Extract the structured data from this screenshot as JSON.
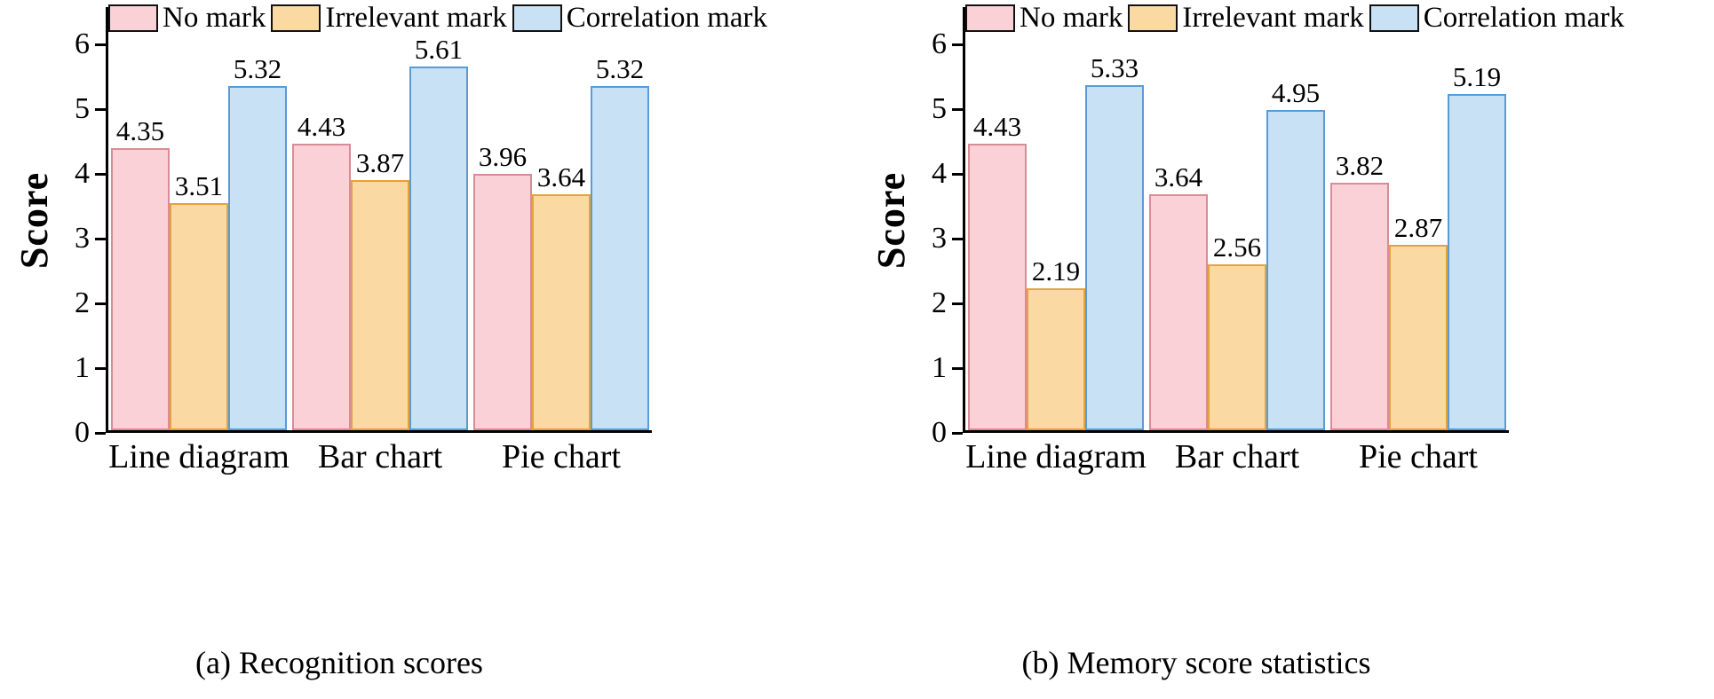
{
  "style": {
    "background": "#ffffff",
    "axis_color": "#000000",
    "text_color": "#000000"
  },
  "chart_data": [
    {
      "type": "bar",
      "caption": "(a) Recognition scores",
      "ylabel": "Score",
      "xlabel": "",
      "ylim": [
        0,
        6
      ],
      "yticks": [
        0,
        1,
        2,
        3,
        4,
        5,
        6
      ],
      "grid": false,
      "legend_position": "top",
      "categories": [
        "Line diagram",
        "Bar chart",
        "Pie chart"
      ],
      "series": [
        {
          "name": "No mark",
          "values": [
            4.35,
            4.43,
            3.96
          ],
          "fill": "#f9d1d7",
          "stroke": "#d98b96"
        },
        {
          "name": "Irrelevant mark",
          "values": [
            3.51,
            3.87,
            3.64
          ],
          "fill": "#fbd9a3",
          "stroke": "#e5a33d"
        },
        {
          "name": "Correlation mark",
          "values": [
            5.32,
            5.61,
            5.32
          ],
          "fill": "#c8e1f5",
          "stroke": "#5b9bd5"
        }
      ]
    },
    {
      "type": "bar",
      "caption": "(b) Memory score statistics",
      "ylabel": "Score",
      "xlabel": "",
      "ylim": [
        0,
        6
      ],
      "yticks": [
        0,
        1,
        2,
        3,
        4,
        5,
        6
      ],
      "grid": false,
      "legend_position": "top",
      "categories": [
        "Line diagram",
        "Bar chart",
        "Pie chart"
      ],
      "series": [
        {
          "name": "No mark",
          "values": [
            4.43,
            3.64,
            3.82
          ],
          "fill": "#f9d1d7",
          "stroke": "#d98b96"
        },
        {
          "name": "Irrelevant mark",
          "values": [
            2.19,
            2.56,
            2.87
          ],
          "fill": "#fbd9a3",
          "stroke": "#e5a33d"
        },
        {
          "name": "Correlation mark",
          "values": [
            5.33,
            4.95,
            5.19
          ],
          "fill": "#c8e1f5",
          "stroke": "#5b9bd5"
        }
      ]
    }
  ]
}
